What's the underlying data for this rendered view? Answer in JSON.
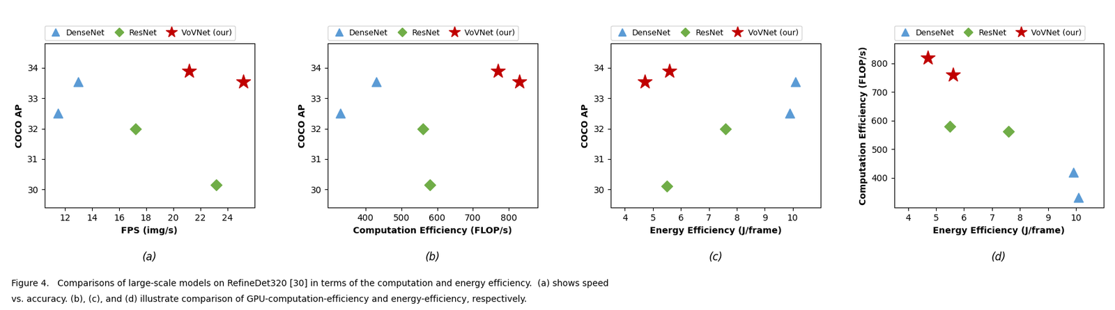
{
  "chart_data": [
    {
      "type": "scatter",
      "x_label": "FPS (img/s)",
      "y_label": "COCO AP",
      "annotations": [
        "(a)"
      ],
      "xlim": [
        10.5,
        26
      ],
      "ylim": [
        29.4,
        34.8
      ],
      "xticks": [
        12,
        14,
        16,
        18,
        20,
        22,
        24
      ],
      "yticks": [
        30,
        31,
        32,
        33,
        34
      ],
      "legend": "lower left",
      "series": [
        {
          "name": "DenseNet",
          "color": "#5b9bd5",
          "marker": "triangle",
          "x": [
            11.5,
            13.0
          ],
          "values": [
            32.5,
            33.55
          ]
        },
        {
          "name": "ResNet",
          "color": "#70ad47",
          "marker": "diamond",
          "x": [
            17.2,
            23.2
          ],
          "values": [
            32.0,
            30.15
          ]
        },
        {
          "name": "VoVNet (our)",
          "color": "#c00000",
          "marker": "star",
          "x": [
            21.2,
            25.2
          ],
          "values": [
            33.9,
            33.55
          ]
        }
      ]
    },
    {
      "type": "scatter",
      "x_label": "Computation Efficiency (FLOP/s)",
      "y_label": "COCO AP",
      "annotations": [
        "(b)"
      ],
      "xlim": [
        295,
        880
      ],
      "ylim": [
        29.4,
        34.8
      ],
      "xticks": [
        400,
        500,
        600,
        700,
        800
      ],
      "yticks": [
        30,
        31,
        32,
        33,
        34
      ],
      "legend": "lower left",
      "series": [
        {
          "name": "DenseNet",
          "color": "#5b9bd5",
          "marker": "triangle",
          "x": [
            330,
            430
          ],
          "values": [
            32.5,
            33.55
          ]
        },
        {
          "name": "ResNet",
          "color": "#70ad47",
          "marker": "diamond",
          "x": [
            560,
            580
          ],
          "values": [
            32.0,
            30.15
          ]
        },
        {
          "name": "VoVNet (our)",
          "color": "#c00000",
          "marker": "star",
          "x": [
            770,
            830
          ],
          "values": [
            33.9,
            33.55
          ]
        }
      ]
    },
    {
      "type": "scatter",
      "x_label": "Energy Efficiency (J/frame)",
      "y_label": "COCO AP",
      "annotations": [
        "(c)"
      ],
      "xlim": [
        3.5,
        11
      ],
      "ylim": [
        29.4,
        34.8
      ],
      "xticks": [
        4,
        5,
        6,
        7,
        8,
        9,
        10
      ],
      "yticks": [
        30,
        31,
        32,
        33,
        34
      ],
      "legend": "lower left",
      "series": [
        {
          "name": "DenseNet",
          "color": "#5b9bd5",
          "marker": "triangle",
          "x": [
            9.9,
            10.1
          ],
          "values": [
            32.5,
            33.55
          ]
        },
        {
          "name": "ResNet",
          "color": "#70ad47",
          "marker": "diamond",
          "x": [
            5.5,
            7.6
          ],
          "values": [
            30.1,
            32.0
          ]
        },
        {
          "name": "VoVNet (our)",
          "color": "#c00000",
          "marker": "star",
          "x": [
            4.7,
            5.6
          ],
          "values": [
            33.55,
            33.9
          ]
        }
      ]
    },
    {
      "type": "scatter",
      "x_label": "Energy Efficiency (J/frame)",
      "y_label": "Computation Efficiency (FLOP/s)",
      "annotations": [
        "(d)"
      ],
      "xlim": [
        3.5,
        11
      ],
      "ylim": [
        295,
        870
      ],
      "xticks": [
        4,
        5,
        6,
        7,
        8,
        9,
        10
      ],
      "yticks": [
        400,
        500,
        600,
        700,
        800
      ],
      "legend": "lower left",
      "series": [
        {
          "name": "DenseNet",
          "color": "#5b9bd5",
          "marker": "triangle",
          "x": [
            9.9,
            10.1
          ],
          "values": [
            420,
            330
          ]
        },
        {
          "name": "ResNet",
          "color": "#70ad47",
          "marker": "diamond",
          "x": [
            5.5,
            7.6
          ],
          "values": [
            580,
            563
          ]
        },
        {
          "name": "VoVNet (our)",
          "color": "#c00000",
          "marker": "star",
          "x": [
            4.7,
            5.6
          ],
          "values": [
            820,
            760
          ]
        }
      ]
    }
  ],
  "caption": [
    "Figure 4.   Comparisons of large-scale models on RefineDet320 [30] in terms of the computation and energy efficiency.  (a) shows speed",
    "vs. accuracy. (b), (c), and (d) illustrate comparison of GPU-computation-efficiency and energy-efficiency, respectively."
  ]
}
